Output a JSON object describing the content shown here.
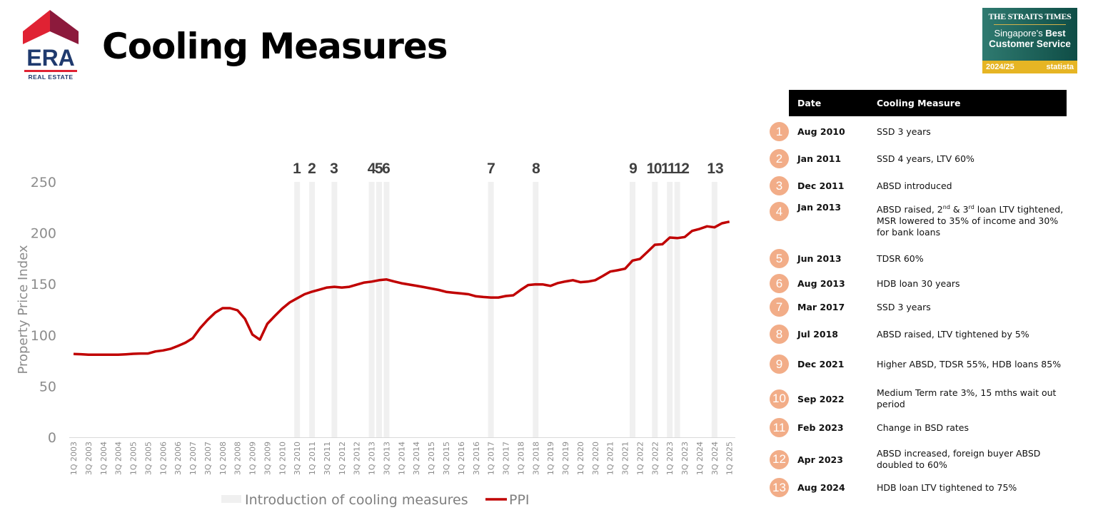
{
  "header": {
    "title": "Cooling Measures"
  },
  "logo": {
    "brand": "ERA",
    "sub": "REAL ESTATE"
  },
  "badge": {
    "publisher": "THE STRAITS TIMES",
    "line1": "Singapore's",
    "line1_bold": "Best",
    "line2": "Customer Service",
    "year": "2024/25",
    "partner": "statista"
  },
  "colors": {
    "ppi": "#c00000",
    "bar": "#f0f0f0",
    "circle": "#f2ad88"
  },
  "table": {
    "headers": {
      "date": "Date",
      "measure": "Cooling Measure"
    },
    "rows": [
      {
        "n": "1",
        "date": "Aug 2010",
        "measure": "SSD 3 years"
      },
      {
        "n": "2",
        "date": "Jan 2011",
        "measure": "SSD 4 years, LTV 60%"
      },
      {
        "n": "3",
        "date": "Dec 2011",
        "measure": "ABSD introduced"
      },
      {
        "n": "4",
        "date": "Jan 2013",
        "measure_parts": [
          "ABSD raised, 2",
          "nd",
          " & 3",
          "rd",
          " loan LTV tightened, MSR lowered to 35% of income and 30% for bank loans"
        ]
      },
      {
        "n": "5",
        "date": "Jun 2013",
        "measure": "TDSR 60%"
      },
      {
        "n": "6",
        "date": "Aug 2013",
        "measure": "HDB loan 30 years"
      },
      {
        "n": "7",
        "date": "Mar 2017",
        "measure": "SSD 3 years"
      },
      {
        "n": "8",
        "date": "Jul 2018",
        "measure": "ABSD raised, LTV tightened by 5%"
      },
      {
        "n": "9",
        "date": "Dec 2021",
        "measure": "Higher ABSD, TDSR 55%, HDB loans 85%"
      },
      {
        "n": "10",
        "date": "Sep 2022",
        "measure": "Medium Term rate 3%, 15 mths wait out period"
      },
      {
        "n": "11",
        "date": "Feb 2023",
        "measure": "Change in BSD rates"
      },
      {
        "n": "12",
        "date": "Apr 2023",
        "measure": "ABSD increased, foreign buyer ABSD doubled to 60%"
      },
      {
        "n": "13",
        "date": "Aug 2024",
        "measure": "HDB loan LTV tightened to 75%"
      }
    ]
  },
  "chart_data": {
    "type": "line",
    "title": "",
    "ylabel": "Property Price Index",
    "xlabel": "",
    "ylim": [
      0,
      250
    ],
    "yticks": [
      0,
      50,
      100,
      150,
      200,
      250
    ],
    "x_start": "1Q 2003",
    "x_labels": [
      "1Q 2003",
      "3Q 2003",
      "1Q 2004",
      "3Q 2004",
      "1Q 2005",
      "3Q 2005",
      "1Q 2006",
      "3Q 2006",
      "1Q 2007",
      "3Q 2007",
      "1Q 2008",
      "3Q 2008",
      "1Q 2009",
      "3Q 2009",
      "1Q 2010",
      "3Q 2010",
      "1Q 2011",
      "3Q 2011",
      "1Q 2012",
      "3Q 2012",
      "1Q 2013",
      "3Q 2013",
      "1Q 2014",
      "3Q 2014",
      "1Q 2015",
      "3Q 2015",
      "1Q 2016",
      "3Q 2016",
      "1Q 2017",
      "3Q 2017",
      "1Q 2018",
      "3Q 2018",
      "1Q 2019",
      "3Q 2019",
      "1Q 2020",
      "3Q 2020",
      "1Q 2021",
      "3Q 2021",
      "1Q 2022",
      "3Q 2022",
      "1Q 2023",
      "3Q 2023",
      "1Q 2024",
      "3Q 2024",
      "1Q 2025"
    ],
    "series": [
      {
        "name": "PPI",
        "values": [
          81.5,
          81.3,
          80.8,
          80.8,
          80.8,
          80.8,
          80.8,
          81.2,
          81.7,
          82,
          82,
          84,
          85,
          86.5,
          89.4,
          92.5,
          97,
          107,
          115,
          122,
          126.4,
          126.4,
          124.3,
          116,
          100.5,
          95.5,
          111,
          118.7,
          126,
          132,
          136,
          140,
          142.5,
          144.5,
          146.6,
          147.3,
          146.6,
          147.3,
          149.4,
          151.5,
          152.4,
          153.8,
          154.5,
          152.5,
          150.8,
          149.5,
          148.3,
          147,
          145.6,
          144.2,
          142.3,
          141.5,
          140.8,
          140,
          138,
          137.3,
          136.8,
          136.8,
          138.3,
          139,
          144.3,
          149,
          149.7,
          149.6,
          148.2,
          151,
          152.5,
          153.8,
          151.8,
          152.4,
          153.8,
          157.8,
          162.2,
          163.5,
          165,
          173,
          174.6,
          181.5,
          188.5,
          189,
          195.5,
          195,
          196,
          202,
          204,
          206.5,
          205.5,
          209.5,
          211
        ]
      }
    ],
    "cooling_measures": {
      "name": "Introduction of cooling measures",
      "markers": [
        {
          "label": "1",
          "quarter_index": 30
        },
        {
          "label": "2",
          "quarter_index": 32
        },
        {
          "label": "3",
          "quarter_index": 35
        },
        {
          "label": "4",
          "quarter_index": 40
        },
        {
          "label": "5",
          "quarter_index": 41
        },
        {
          "label": "6",
          "quarter_index": 42
        },
        {
          "label": "7",
          "quarter_index": 56
        },
        {
          "label": "8",
          "quarter_index": 62
        },
        {
          "label": "9",
          "quarter_index": 75
        },
        {
          "label": "10",
          "quarter_index": 78
        },
        {
          "label": "11",
          "quarter_index": 80
        },
        {
          "label": "12",
          "quarter_index": 81
        },
        {
          "label": "13",
          "quarter_index": 86
        }
      ]
    },
    "legend": {
      "position": "bottom",
      "entries": [
        "Introduction of cooling measures",
        "PPI"
      ]
    }
  }
}
